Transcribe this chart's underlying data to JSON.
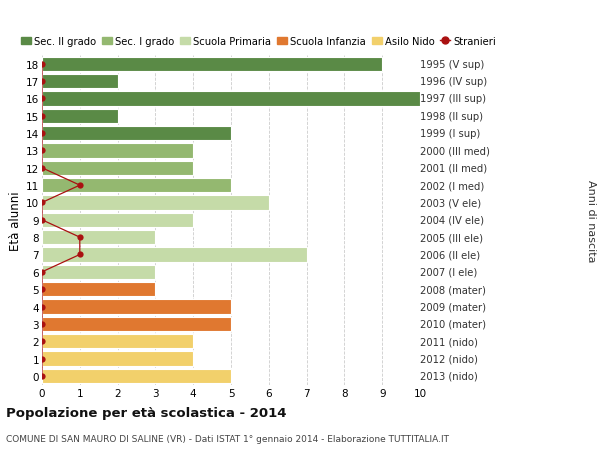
{
  "ages": [
    0,
    1,
    2,
    3,
    4,
    5,
    6,
    7,
    8,
    9,
    10,
    11,
    12,
    13,
    14,
    15,
    16,
    17,
    18
  ],
  "right_labels": [
    "2013 (nido)",
    "2012 (nido)",
    "2011 (nido)",
    "2010 (mater)",
    "2009 (mater)",
    "2008 (mater)",
    "2007 (I ele)",
    "2006 (II ele)",
    "2005 (III ele)",
    "2004 (IV ele)",
    "2003 (V ele)",
    "2002 (I med)",
    "2001 (II med)",
    "2000 (III med)",
    "1999 (I sup)",
    "1998 (II sup)",
    "1997 (III sup)",
    "1996 (IV sup)",
    "1995 (V sup)"
  ],
  "bar_values": [
    5,
    4,
    4,
    5,
    5,
    3,
    3,
    7,
    3,
    4,
    6,
    5,
    4,
    4,
    5,
    2,
    10,
    2,
    9
  ],
  "bar_colors": [
    "#f2d06b",
    "#f2d06b",
    "#f2d06b",
    "#e07830",
    "#e07830",
    "#e07830",
    "#c5dba8",
    "#c5dba8",
    "#c5dba8",
    "#c5dba8",
    "#c5dba8",
    "#94b870",
    "#94b870",
    "#94b870",
    "#5a8a46",
    "#5a8a46",
    "#5a8a46",
    "#5a8a46",
    "#5a8a46"
  ],
  "stranieri_x": [
    0,
    0,
    0,
    0,
    0,
    0,
    0,
    1,
    1,
    0,
    0,
    1,
    0,
    0,
    0,
    0,
    0,
    0,
    0
  ],
  "color_sec2": "#5a8a46",
  "color_sec1": "#94b870",
  "color_primaria": "#c5dba8",
  "color_infanzia": "#e07830",
  "color_nido": "#f2d06b",
  "color_stranieri": "#aa1111",
  "title_main": "Popolazione per età scolastica - 2014",
  "title_sub": "COMUNE DI SAN MAURO DI SALINE (VR) - Dati ISTAT 1° gennaio 2014 - Elaborazione TUTTITALIA.IT",
  "ylabel": "Età alunni",
  "ylabel_right": "Anni di nascita",
  "xlim": [
    0,
    10
  ],
  "xticks": [
    0,
    1,
    2,
    3,
    4,
    5,
    6,
    7,
    8,
    9,
    10
  ],
  "bg_color": "#ffffff",
  "grid_color": "#cccccc",
  "bar_height": 0.82
}
